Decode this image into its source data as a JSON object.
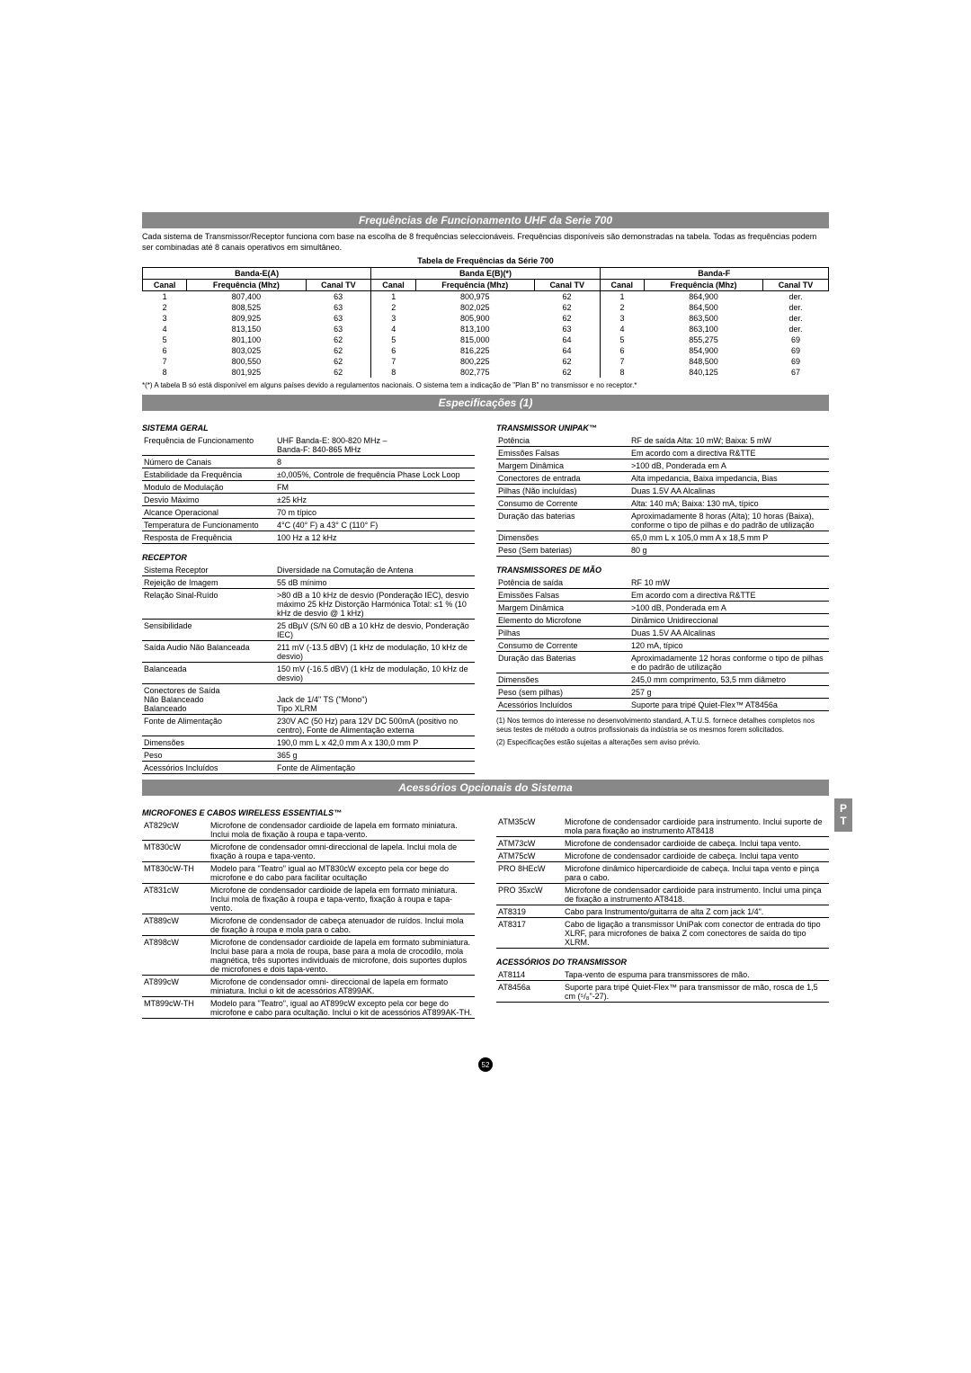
{
  "sections": {
    "freq_title": "Frequências de Funcionamento UHF da Serie 700",
    "spec_title": "Especificações (1)",
    "acc_title": "Acessórios Opcionais do Sistema"
  },
  "intro": "Cada sistema de Transmissor/Receptor funciona com base na escolha de 8 frequências seleccionáveis. Frequências disponíveis são demonstradas na tabela. Todas as frequências podem ser combinadas até 8 canais operativos em simultâneo.",
  "freq_table_title": "Tabela de Frequências da Série 700",
  "freq_headers": {
    "canal": "Canal",
    "freq": "Frequência (Mhz)",
    "tv": "Canal TV"
  },
  "freq_bands": {
    "a": "Banda-E(A)",
    "b": "Banda E(B)(*)",
    "f": "Banda-F"
  },
  "freq_rows": [
    {
      "a_c": "1",
      "a_f": "807,400",
      "a_tv": "63",
      "b_c": "1",
      "b_f": "800,975",
      "b_tv": "62",
      "f_c": "1",
      "f_f": "864,900",
      "f_tv": "der."
    },
    {
      "a_c": "2",
      "a_f": "808,525",
      "a_tv": "63",
      "b_c": "2",
      "b_f": "802,025",
      "b_tv": "62",
      "f_c": "2",
      "f_f": "864,500",
      "f_tv": "der."
    },
    {
      "a_c": "3",
      "a_f": "809,925",
      "a_tv": "63",
      "b_c": "3",
      "b_f": "805,900",
      "b_tv": "62",
      "f_c": "3",
      "f_f": "863,500",
      "f_tv": "der."
    },
    {
      "a_c": "4",
      "a_f": "813,150",
      "a_tv": "63",
      "b_c": "4",
      "b_f": "813,100",
      "b_tv": "63",
      "f_c": "4",
      "f_f": "863,100",
      "f_tv": "der."
    },
    {
      "a_c": "5",
      "a_f": "801,100",
      "a_tv": "62",
      "b_c": "5",
      "b_f": "815,000",
      "b_tv": "64",
      "f_c": "5",
      "f_f": "855,275",
      "f_tv": "69"
    },
    {
      "a_c": "6",
      "a_f": "803,025",
      "a_tv": "62",
      "b_c": "6",
      "b_f": "816,225",
      "b_tv": "64",
      "f_c": "6",
      "f_f": "854,900",
      "f_tv": "69"
    },
    {
      "a_c": "7",
      "a_f": "800,550",
      "a_tv": "62",
      "b_c": "7",
      "b_f": "800,225",
      "b_tv": "62",
      "f_c": "7",
      "f_f": "848,500",
      "f_tv": "69"
    },
    {
      "a_c": "8",
      "a_f": "801,925",
      "a_tv": "62",
      "b_c": "8",
      "b_f": "802,775",
      "b_tv": "62",
      "f_c": "8",
      "f_f": "840,125",
      "f_tv": "67"
    }
  ],
  "freq_footnote": "*(*) A tabela B só está disponível em alguns países devido a regulamentos nacionais. O sistema tem a indicação de \"Plan B\" no transmissor e no receptor.*",
  "spec_general_title": "SISTEMA GERAL",
  "spec_general": [
    [
      "Frequência de Funcionamento",
      "UHF  Banda-E: 800-820 MHz –\nBanda-F: 840-865 MHz"
    ],
    [
      "Número de Canais",
      "8"
    ],
    [
      "Estabilidade da Frequência",
      "±0,005%, Controle de frequência Phase Lock Loop"
    ],
    [
      "Modulo de Modulação",
      "FM"
    ],
    [
      "Desvio Máximo",
      "±25 kHz"
    ],
    [
      "Alcance Operacional",
      "70 m típico"
    ],
    [
      "Temperatura de Funcionamento",
      "4°C (40° F) a 43° C (110° F)"
    ],
    [
      "Resposta de Frequência",
      "100 Hz a 12 kHz"
    ]
  ],
  "spec_receiver_title": "RECEPTOR",
  "spec_receiver": [
    [
      "Sistema Receptor",
      "Diversidade na Comutação de Antena"
    ],
    [
      "Rejeição de Imagem",
      "55 dB mínimo"
    ],
    [
      "Relação Sinal-Ruído",
      ">80 dB a 10 kHz de desvio (Ponderação IEC), desvio máximo 25 kHz Distorção Harmónica Total: ≤1 % (10 kHz de desvio @ 1 kHz)"
    ],
    [
      "Sensibilidade",
      "25 dBµV (S/N 60 dB a 10 kHz de desvio, Ponderação IEC)"
    ],
    [
      "Saída Audio   Não  Balanceada",
      "211 mV (-13.5 dBV) (1 kHz de modulação, 10 kHz de desvio)"
    ],
    [
      "                     Balanceada",
      "150 mV (-16.5 dBV) (1 kHz de modulação, 10 kHz de desvio)"
    ],
    [
      "Conectores de Saída\n               Não Balanceado\n               Balanceado",
      "\nJack de 1/4\" TS (\"Mono\")\nTipo XLRM"
    ],
    [
      "Fonte de Alimentação",
      "230V AC (50 Hz) para 12V DC 500mA (positivo no centro), Fonte de Alimentação externa"
    ],
    [
      "Dimensões",
      "190,0 mm L x 42,0 mm A x 130,0 mm P"
    ],
    [
      "Peso",
      "365 g"
    ],
    [
      "Acessórios Incluídos",
      "Fonte de Alimentação"
    ]
  ],
  "spec_unipak_title": "TRANSMISSOR UNIPAK™",
  "spec_unipak": [
    [
      "Potência",
      "RF de saída Alta: 10 mW; Baixa: 5 mW"
    ],
    [
      "Emissões Falsas",
      "Em acordo com a directiva R&TTE"
    ],
    [
      "Margem Dinâmica",
      ">100 dB, Ponderada em A"
    ],
    [
      "Conectores de entrada",
      "Alta impedancia, Baixa impedancia, Bias"
    ],
    [
      "Pilhas (Não incluídas)",
      "Duas 1.5V AA Alcalinas"
    ],
    [
      "Consumo de Corrente",
      "Alta: 140 mA; Baixa: 130 mA, típico"
    ],
    [
      "Duração das baterias",
      "Aproximadamente 8 horas (Alta); 10 horas (Baixa), conforme o tipo de pilhas e do padrão de utilização"
    ],
    [
      "Dimensões",
      "65,0 mm L x 105,0 mm A x 18,5 mm P"
    ],
    [
      "Peso (Sem baterias)",
      "80 g"
    ]
  ],
  "spec_handheld_title": "TRANSMISSORES DE MÃO",
  "spec_handheld": [
    [
      "Potência de saída",
      "RF 10 mW"
    ],
    [
      "Emissões Falsas",
      "Em acordo com a directiva R&TTE"
    ],
    [
      "Margem Dinâmica",
      ">100 dB, Ponderada em A"
    ],
    [
      "Elemento do Microfone",
      "Dinâmico Unidireccional"
    ],
    [
      "Pilhas",
      "Duas 1.5V AA Alcalinas"
    ],
    [
      "Consumo de Corrente",
      "120 mA, típico"
    ],
    [
      "Duração das Baterias",
      "Aproximadamente 12 horas conforme o tipo de pilhas e do padrão de utilização"
    ],
    [
      "Dimensões",
      "245,0 mm comprimento, 53,5 mm  diâmetro"
    ],
    [
      "Peso (sem pilhas)",
      "257 g"
    ],
    [
      "Acessórios Incluídos",
      "Suporte para tripé Quiet-Flex™  AT8456a"
    ]
  ],
  "spec_notes": [
    "(1)  Nos termos do interesse no desenvolvimento standard, A.T.U.S. fornece detalhes completos nos seus testes de método a outros profissionais da indústria se os mesmos forem solicitados.",
    "(2)  Especificações estão sujeitas a alterações sem aviso prévio."
  ],
  "acc_mics_title": "MICROFONES E CABOS WIRELESS ESSENTIALS™",
  "acc_mics": [
    [
      "AT829cW",
      "Microfone de condensador cardioide de lapela em formato miniatura. Inclui mola de fixação à roupa e tapa-vento."
    ],
    [
      "MT830cW",
      "Microfone de condensador omni-direccional de lapela.  Inclui mola de fixação à roupa e tapa-vento."
    ],
    [
      "MT830cW-TH",
      "Modelo para \"Teatro\"  igual ao MT830cW excepto pela cor bege do microfone e do cabo para facilitar ocultação"
    ],
    [
      "AT831cW",
      "Microfone de condensador cardioide de lapela em formato miniatura. Inclui mola de fixação à roupa e tapa-vento, fixação à roupa e tapa-vento."
    ],
    [
      "AT889cW",
      "Microfone de condensador de cabeça atenuador de ruídos. Inclui mola de fixação à roupa e mola para o cabo."
    ],
    [
      "AT898cW",
      "Microfone de condensador cardioide de lapela em formato subminiatura. Inclui base para a mola de roupa, base para a mola de crocodilo, mola magnética, três suportes individuais de microfone, dois suportes duplos de microfones e dois tapa-vento."
    ],
    [
      "AT899cW",
      "Microfone de condensador omni- direccional de lapela em formato miniatura. Inclui o kit de acessórios AT899AK."
    ],
    [
      "MT899cW-TH",
      "Modelo para \"Teatro\", igual ao AT899cW excepto pela cor bege do microfone e cabo para ocultação. Inclui o kit de acessórios AT899AK-TH."
    ]
  ],
  "acc_mics2": [
    [
      "ATM35cW",
      "Microfone de condensador cardioide para instrumento. Inclui suporte de mola para fixação ao instrumento AT8418"
    ],
    [
      "ATM73cW",
      "Microfone de condensador cardioide de cabeça. Inclui tapa vento."
    ],
    [
      "ATM75cW",
      "Microfone de condensador cardioide de cabeça. Inclui tapa vento"
    ],
    [
      "PRO 8HEcW",
      "Microfone dinâmico hipercardioide de cabeça. Inclui tapa vento e pinça para o cabo."
    ],
    [
      "PRO 35xcW",
      "Microfone de condensador cardioide para instrumento. Inclui uma pinça de fixação a instrumento AT8418."
    ],
    [
      "AT8319",
      "Cabo para Instrumento/guitarra de alta Z com jack 1/4\"."
    ],
    [
      "AT8317",
      "Cabo de ligação a transmissor UniPak com conector de entrada do tipo XLRF, para microfones de baixa Z com conectores de saída do tipo XLRM."
    ]
  ],
  "acc_tx_title": "ACESSÓRIOS DO TRANSMISSOR",
  "acc_tx": [
    [
      "AT8114",
      "Tapa-vento de espuma para transmissores de mão."
    ],
    [
      "AT8456a",
      "Suporte para tripé  Quiet-Flex™  para transmissor de mão, rosca de 1,5 cm (⁵/₈\"-27)."
    ]
  ],
  "sidebox": "P\nT",
  "pagenum": "52"
}
